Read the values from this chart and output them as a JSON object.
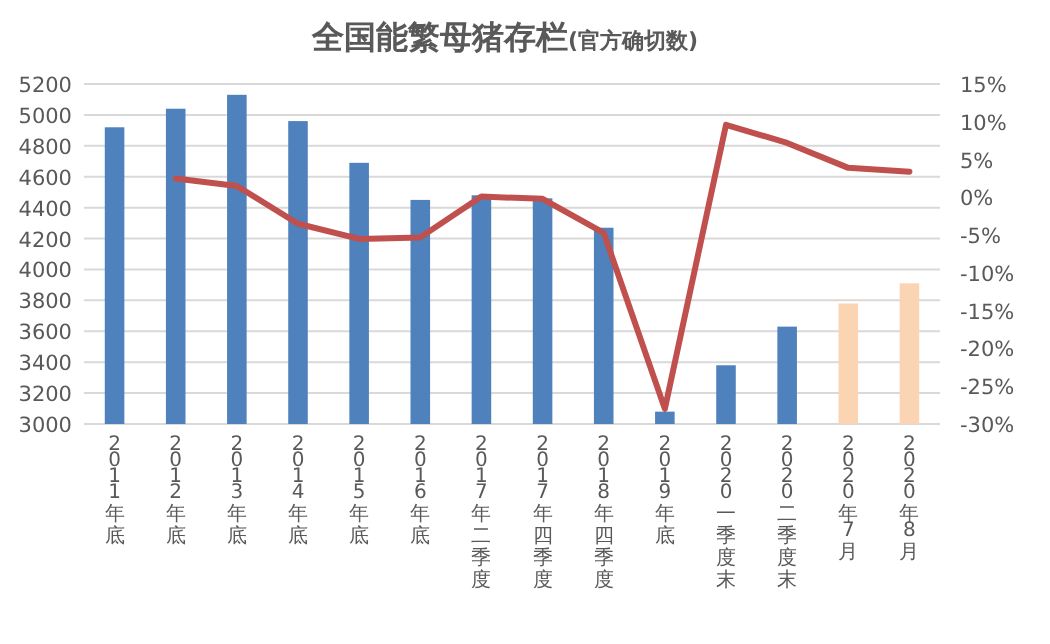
{
  "chart_data": {
    "type": "bar",
    "title": "全国能繁母猪存栏",
    "subtitle": "(官方确切数)",
    "categories": [
      "2011年底",
      "2012年底",
      "2013年底",
      "2014年底",
      "2015年底",
      "2016年底",
      "2017年二季度",
      "2017年四季度",
      "2018年四季度",
      "2019年底",
      "2020一季度末",
      "2020二季度末",
      "2020年7月",
      "2020年8月"
    ],
    "series": [
      {
        "values": [
          4920,
          5040,
          5130,
          4960,
          4690,
          4450,
          4480,
          4460,
          4270,
          3080,
          3380,
          3630,
          3780,
          3910
        ],
        "colors": [
          "#4f81bd",
          "#4f81bd",
          "#4f81bd",
          "#4f81bd",
          "#4f81bd",
          "#4f81bd",
          "#4f81bd",
          "#4f81bd",
          "#4f81bd",
          "#4f81bd",
          "#4f81bd",
          "#4f81bd",
          "#fbd4b4",
          "#fbd4b4"
        ]
      },
      {
        "type": "line",
        "axis": "y2",
        "color": "#c0504d",
        "values": [
          null,
          2.5,
          1.5,
          -3.5,
          -5.5,
          -5.3,
          0.1,
          -0.2,
          -4.7,
          -28,
          9.6,
          7.2,
          3.9,
          3.4
        ]
      }
    ],
    "ylim": [
      3000,
      5200
    ],
    "yticks": [
      3000,
      3200,
      3400,
      3600,
      3800,
      4000,
      4200,
      4400,
      4600,
      4800,
      5000,
      5200
    ],
    "y2lim": [
      -30,
      15
    ],
    "y2ticks": [
      {
        "value": -30,
        "label": "-30%"
      },
      {
        "value": -25,
        "label": "-25%"
      },
      {
        "value": -20,
        "label": "-20%"
      },
      {
        "value": -15,
        "label": "-15%"
      },
      {
        "value": -10,
        "label": "-10%"
      },
      {
        "value": -5,
        "label": "-5%"
      },
      {
        "value": 0,
        "label": "0%"
      },
      {
        "value": 5,
        "label": "5%"
      },
      {
        "value": 10,
        "label": "10%"
      },
      {
        "value": 15,
        "label": "15%"
      }
    ],
    "grid": "y"
  }
}
